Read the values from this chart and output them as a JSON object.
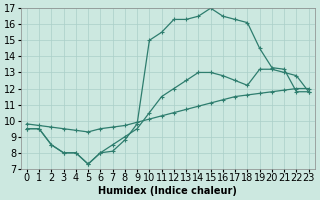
{
  "xlabel": "Humidex (Indice chaleur)",
  "background_color": "#cce8e0",
  "line_color": "#2e7d6e",
  "xlim": [
    -0.5,
    23.5
  ],
  "ylim": [
    7,
    17
  ],
  "xticks": [
    0,
    1,
    2,
    3,
    4,
    5,
    6,
    7,
    8,
    9,
    10,
    11,
    12,
    13,
    14,
    15,
    16,
    17,
    18,
    19,
    20,
    21,
    22,
    23
  ],
  "yticks": [
    7,
    8,
    9,
    10,
    11,
    12,
    13,
    14,
    15,
    16,
    17
  ],
  "line1_x": [
    0,
    1,
    2,
    3,
    4,
    5,
    6,
    7,
    8,
    9,
    10,
    11,
    12,
    13,
    14,
    15,
    16,
    17,
    18,
    19,
    20,
    21,
    22,
    23
  ],
  "line1_y": [
    9.5,
    9.5,
    8.5,
    8.0,
    8.0,
    7.3,
    8.0,
    8.1,
    8.8,
    9.8,
    15.0,
    15.5,
    16.3,
    16.3,
    16.5,
    17.0,
    16.5,
    16.3,
    16.1,
    14.5,
    13.3,
    13.2,
    11.8,
    11.8
  ],
  "line2_x": [
    0,
    1,
    2,
    3,
    4,
    5,
    6,
    7,
    8,
    9,
    10,
    11,
    12,
    13,
    14,
    15,
    16,
    17,
    18,
    19,
    20,
    21,
    22,
    23
  ],
  "line2_y": [
    9.5,
    9.5,
    8.5,
    8.0,
    8.0,
    7.3,
    8.0,
    8.5,
    9.0,
    9.5,
    10.5,
    11.5,
    12.0,
    12.5,
    13.0,
    13.0,
    12.8,
    12.5,
    12.2,
    13.2,
    13.2,
    13.0,
    12.8,
    11.8
  ],
  "line3_x": [
    0,
    1,
    2,
    3,
    4,
    5,
    6,
    7,
    8,
    9,
    10,
    11,
    12,
    13,
    14,
    15,
    16,
    17,
    18,
    19,
    20,
    21,
    22,
    23
  ],
  "line3_y": [
    9.8,
    9.7,
    9.6,
    9.5,
    9.4,
    9.3,
    9.5,
    9.6,
    9.7,
    9.9,
    10.1,
    10.3,
    10.5,
    10.7,
    10.9,
    11.1,
    11.3,
    11.5,
    11.6,
    11.7,
    11.8,
    11.9,
    12.0,
    12.0
  ],
  "grid_color": "#aacfc8",
  "font_size": 7,
  "lw": 0.9,
  "ms": 3.0
}
